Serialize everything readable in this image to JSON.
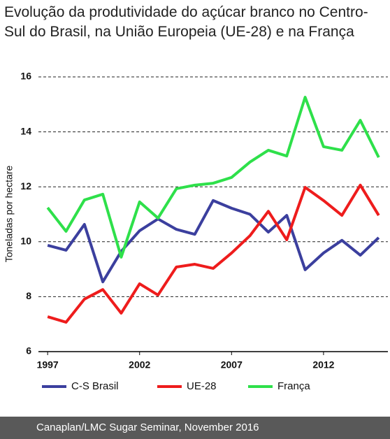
{
  "chart_data": {
    "type": "line",
    "title": "Evolução da produtividade do açúcar branco no Centro-Sul do Brasil, na União Europeia (UE-28) e na França",
    "y_label": "Toneladas por hectare",
    "source": "Canaplan/LMC Sugar Seminar, November 2016",
    "x": [
      1997,
      1998,
      1999,
      2000,
      2001,
      2002,
      2003,
      2004,
      2005,
      2006,
      2007,
      2008,
      2009,
      2010,
      2011,
      2012,
      2013,
      2014,
      2015
    ],
    "xlim": [
      1996.5,
      2015.5
    ],
    "xticks": [
      1997,
      2002,
      2007,
      2012
    ],
    "ylim": [
      6,
      16
    ],
    "yticks": [
      6,
      8,
      10,
      12,
      14,
      16
    ],
    "grid": true,
    "legend": "bottom",
    "series": [
      {
        "name": "C-S Brasil",
        "color": "#3b3f9e",
        "values": [
          9.87,
          9.69,
          10.63,
          8.54,
          9.65,
          10.4,
          10.83,
          10.45,
          10.27,
          11.5,
          11.22,
          11.0,
          10.35,
          10.96,
          8.98,
          9.59,
          10.05,
          9.51,
          10.15
        ]
      },
      {
        "name": "UE-28",
        "color": "#ee1c1c",
        "values": [
          7.27,
          7.07,
          7.91,
          8.26,
          7.4,
          8.47,
          8.06,
          9.08,
          9.18,
          9.03,
          9.59,
          10.22,
          11.11,
          10.07,
          11.98,
          11.5,
          10.96,
          12.06,
          10.96
        ]
      },
      {
        "name": "França",
        "color": "#2ee04a",
        "values": [
          11.24,
          10.38,
          11.52,
          11.73,
          9.44,
          11.45,
          10.86,
          11.93,
          12.06,
          12.13,
          12.34,
          12.9,
          13.33,
          13.12,
          15.26,
          13.46,
          13.33,
          14.42,
          13.07
        ]
      }
    ]
  }
}
